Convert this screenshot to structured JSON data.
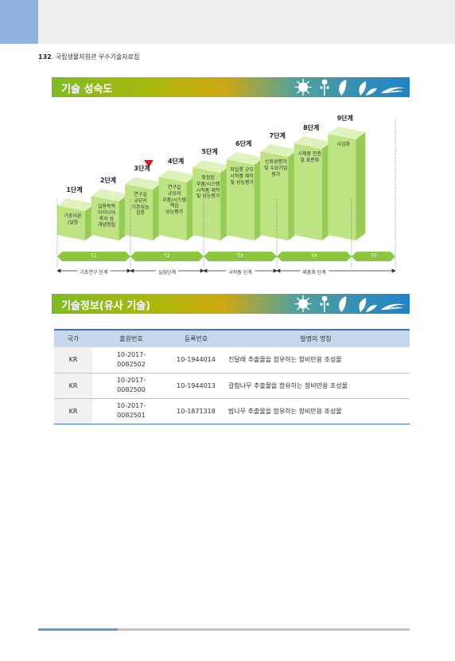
{
  "header": {
    "page_number": "132",
    "book_title": "국립생물자원관 우수기술자료집"
  },
  "sections": {
    "maturity_title": "기술 성숙도",
    "similar_title": "기술정보(유사 기술)"
  },
  "maturity": {
    "current_stage": 3,
    "stages": [
      {
        "label": "1단계",
        "desc": "기초이론\n/실험"
      },
      {
        "label": "2단계",
        "desc": "실용목적\n아이디어\n특허 등\n개념정립"
      },
      {
        "label": "3단계",
        "desc": "연구실\n규모의\n기본성능\n검증"
      },
      {
        "label": "4단계",
        "desc": "연구실\n규모의\n부품/시스템\n핵심\n성능평가"
      },
      {
        "label": "5단계",
        "desc": "확정된\n부품/시스템\n시작품 제작\n및 성능평가"
      },
      {
        "label": "6단계",
        "desc": "파일롯 규모\n시작품 제작\n및 성능평가"
      },
      {
        "label": "7단계",
        "desc": "신뢰성평가\n및 수요기업\n평가"
      },
      {
        "label": "8단계",
        "desc": "시제품 인증\n및 표준화"
      },
      {
        "label": "9단계",
        "desc": "사업화"
      }
    ],
    "t_labels": [
      "T1",
      "T2",
      "T3",
      "T4",
      "T5"
    ],
    "phases": [
      "기초연구 단계",
      "실험단계",
      "시작품 단계",
      "제품화 단계"
    ],
    "colors": {
      "block_front": "#bde383",
      "block_top": "#dff2bd",
      "block_side": "#96cb55",
      "arrow": "#8cc63f",
      "marker": "#d7191c"
    }
  },
  "table": {
    "headers": [
      "국가",
      "출원번호",
      "등록번호",
      "발명의 명칭"
    ],
    "rows": [
      {
        "country": "KR",
        "application_no": "10-2017-\n0082502",
        "registration_no": "10-1944014",
        "title": "진달래 추출물을 함유하는 항비만용 조성물"
      },
      {
        "country": "KR",
        "application_no": "10-2017-\n0082500",
        "registration_no": "10-1944013",
        "title": "갈참나무 추출물을 함유하는 항비만용 조성물"
      },
      {
        "country": "KR",
        "application_no": "10-2017-\n0082501",
        "registration_no": "10-1871318",
        "title": "밤나무 추출물을 함유하는 항비만용 조성물"
      }
    ]
  }
}
